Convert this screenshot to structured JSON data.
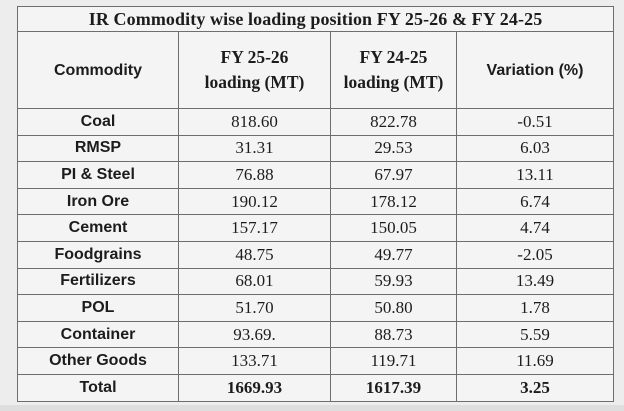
{
  "title": "IR Commodity wise loading position FY 25-26 & FY 24-25",
  "headers": {
    "commodity": "Commodity",
    "fy2526_line1": "FY 25-26",
    "fy2526_line2": "loading (MT)",
    "fy2425_line1": "FY 24-25",
    "fy2425_line2": "loading (MT)",
    "variation": "Variation (%)"
  },
  "rows": [
    {
      "commodity": "Coal",
      "fy2526": "818.60",
      "fy2425": "822.78",
      "variation": "-0.51"
    },
    {
      "commodity": "RMSP",
      "fy2526": "31.31",
      "fy2425": "29.53",
      "variation": "6.03"
    },
    {
      "commodity": "PI & Steel",
      "fy2526": "76.88",
      "fy2425": "67.97",
      "variation": "13.11"
    },
    {
      "commodity": "Iron Ore",
      "fy2526": "190.12",
      "fy2425": "178.12",
      "variation": "6.74"
    },
    {
      "commodity": "Cement",
      "fy2526": "157.17",
      "fy2425": "150.05",
      "variation": "4.74"
    },
    {
      "commodity": "Foodgrains",
      "fy2526": "48.75",
      "fy2425": "49.77",
      "variation": "-2.05"
    },
    {
      "commodity": "Fertilizers",
      "fy2526": "68.01",
      "fy2425": "59.93",
      "variation": "13.49"
    },
    {
      "commodity": "POL",
      "fy2526": "51.70",
      "fy2425": "50.80",
      "variation": "1.78"
    },
    {
      "commodity": "Container",
      "fy2526": "93.69.",
      "fy2425": "88.73",
      "variation": "5.59"
    },
    {
      "commodity": "Other Goods",
      "fy2526": "133.71",
      "fy2425": "119.71",
      "variation": "11.69"
    }
  ],
  "total": {
    "commodity": "Total",
    "fy2526": "1669.93",
    "fy2425": "1617.39",
    "variation": "3.25"
  }
}
